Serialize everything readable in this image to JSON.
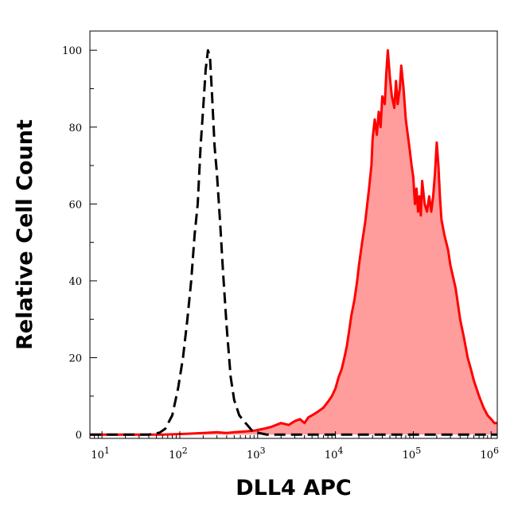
{
  "chart_data": {
    "type": "area",
    "title": "",
    "xlabel": "DLL4 APC",
    "ylabel": "Relative Cell Count",
    "xscale": "log",
    "xlim": [
      7,
      1200000
    ],
    "ylim": [
      -1,
      105
    ],
    "x_major_ticks": [
      {
        "value": 10,
        "base": "10",
        "exp": "1"
      },
      {
        "value": 100,
        "base": "10",
        "exp": "2"
      },
      {
        "value": 1000,
        "base": "10",
        "exp": "3"
      },
      {
        "value": 10000,
        "base": "10",
        "exp": "4"
      },
      {
        "value": 100000,
        "base": "10",
        "exp": "5"
      },
      {
        "value": 1000000,
        "base": "10",
        "exp": "6"
      }
    ],
    "y_ticks": [
      0,
      20,
      40,
      60,
      80,
      100
    ],
    "grid": false,
    "legend": "none",
    "series": [
      {
        "style": "dashed",
        "color": "#000000",
        "fill": "none",
        "points": [
          [
            7,
            0
          ],
          [
            20,
            0
          ],
          [
            40,
            0
          ],
          [
            55,
            0.5
          ],
          [
            65,
            1.5
          ],
          [
            80,
            5
          ],
          [
            95,
            12
          ],
          [
            110,
            20
          ],
          [
            125,
            30
          ],
          [
            140,
            40
          ],
          [
            155,
            52
          ],
          [
            170,
            60
          ],
          [
            185,
            75
          ],
          [
            200,
            85
          ],
          [
            215,
            95
          ],
          [
            230,
            100
          ],
          [
            245,
            98
          ],
          [
            260,
            88
          ],
          [
            280,
            75
          ],
          [
            300,
            68
          ],
          [
            330,
            55
          ],
          [
            360,
            42
          ],
          [
            400,
            28
          ],
          [
            450,
            15
          ],
          [
            500,
            9
          ],
          [
            580,
            5
          ],
          [
            700,
            3
          ],
          [
            850,
            1
          ],
          [
            1000,
            0.5
          ],
          [
            1300,
            0
          ],
          [
            3000,
            0
          ],
          [
            1200000,
            0
          ]
        ]
      },
      {
        "style": "solid",
        "color": "#ff0000",
        "fill": "#ff9c9c",
        "points": [
          [
            7,
            0
          ],
          [
            60,
            0
          ],
          [
            120,
            0.2
          ],
          [
            200,
            0.4
          ],
          [
            300,
            0.6
          ],
          [
            400,
            0.4
          ],
          [
            500,
            0.6
          ],
          [
            700,
            0.8
          ],
          [
            900,
            1
          ],
          [
            1200,
            1.5
          ],
          [
            1500,
            2
          ],
          [
            2000,
            3
          ],
          [
            2500,
            2.5
          ],
          [
            3000,
            3.5
          ],
          [
            3500,
            4
          ],
          [
            4000,
            3
          ],
          [
            4500,
            4.5
          ],
          [
            5000,
            5
          ],
          [
            6000,
            6
          ],
          [
            7000,
            7
          ],
          [
            8000,
            8.5
          ],
          [
            9000,
            10
          ],
          [
            10000,
            12
          ],
          [
            11000,
            15
          ],
          [
            12000,
            17
          ],
          [
            13000,
            20
          ],
          [
            14000,
            23
          ],
          [
            15000,
            27
          ],
          [
            16000,
            31
          ],
          [
            17500,
            35
          ],
          [
            19000,
            40
          ],
          [
            20000,
            44
          ],
          [
            22000,
            50
          ],
          [
            24000,
            55
          ],
          [
            25000,
            58
          ],
          [
            27000,
            64
          ],
          [
            29000,
            70
          ],
          [
            30000,
            77
          ],
          [
            32000,
            82
          ],
          [
            34000,
            78
          ],
          [
            36000,
            84
          ],
          [
            38000,
            80
          ],
          [
            40000,
            88
          ],
          [
            43000,
            86
          ],
          [
            45000,
            94
          ],
          [
            47000,
            100
          ],
          [
            50000,
            93
          ],
          [
            53000,
            88
          ],
          [
            57000,
            85
          ],
          [
            60000,
            92
          ],
          [
            63000,
            86
          ],
          [
            67000,
            90
          ],
          [
            70000,
            96
          ],
          [
            75000,
            90
          ],
          [
            80000,
            82
          ],
          [
            85000,
            78
          ],
          [
            90000,
            74
          ],
          [
            95000,
            70
          ],
          [
            100000,
            67
          ],
          [
            105000,
            60
          ],
          [
            110000,
            64
          ],
          [
            115000,
            58
          ],
          [
            120000,
            62
          ],
          [
            125000,
            57
          ],
          [
            130000,
            66
          ],
          [
            140000,
            60
          ],
          [
            150000,
            58
          ],
          [
            160000,
            62
          ],
          [
            170000,
            58
          ],
          [
            180000,
            62
          ],
          [
            190000,
            68
          ],
          [
            200000,
            76
          ],
          [
            210000,
            70
          ],
          [
            220000,
            62
          ],
          [
            230000,
            56
          ],
          [
            250000,
            52
          ],
          [
            280000,
            48
          ],
          [
            300000,
            44
          ],
          [
            350000,
            38
          ],
          [
            400000,
            30
          ],
          [
            450000,
            25
          ],
          [
            500000,
            20
          ],
          [
            550000,
            17
          ],
          [
            600000,
            14
          ],
          [
            700000,
            10
          ],
          [
            800000,
            7
          ],
          [
            900000,
            5
          ],
          [
            1000000,
            4
          ],
          [
            1100000,
            3
          ],
          [
            1200000,
            3
          ]
        ]
      }
    ]
  }
}
